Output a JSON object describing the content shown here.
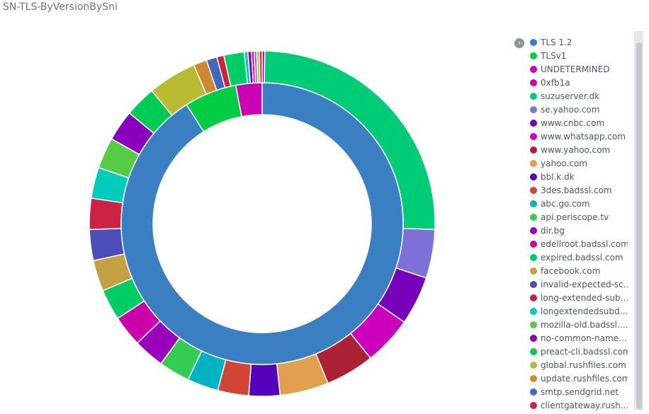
{
  "title": "SN-TLS-ByVersionBySni",
  "legend_toggle_icon": "chevron-right-icon",
  "legend": [
    {
      "label": "TLS 1.2",
      "color": "#3a7fc1"
    },
    {
      "label": "TLSv1",
      "color": "#00cc44"
    },
    {
      "label": "UNDETERMINED",
      "color": "#cc00b3"
    },
    {
      "label": "0xfb1a",
      "color": "#cc00aa"
    },
    {
      "label": "suzuserver.dk",
      "color": "#00cc77"
    },
    {
      "label": "se.yahoo.com",
      "color": "#7c71d8"
    },
    {
      "label": "www.cnbc.com",
      "color": "#7700bb"
    },
    {
      "label": "www.whatsapp.com",
      "color": "#cc00bb"
    },
    {
      "label": "www.yahoo.com",
      "color": "#aa2233"
    },
    {
      "label": "yahoo.com",
      "color": "#e0a050"
    },
    {
      "label": "bbl.k.dk",
      "color": "#5500bb"
    },
    {
      "label": "3des.badssl.com",
      "color": "#d04535"
    },
    {
      "label": "abc.go.com",
      "color": "#00b3c4"
    },
    {
      "label": "api.periscope.tv",
      "color": "#33cc55"
    },
    {
      "label": "dir.bg",
      "color": "#9900bb"
    },
    {
      "label": "edellroot.badssl.com",
      "color": "#cc00aa"
    },
    {
      "label": "expired.badssl.com",
      "color": "#00cc66"
    },
    {
      "label": "facebook.com",
      "color": "#c4a040"
    },
    {
      "label": "invalid-expected-sct....",
      "color": "#4c4cbb"
    },
    {
      "label": "long-extended-subdo...",
      "color": "#cc2244"
    },
    {
      "label": "longextendedsubdo...",
      "color": "#00ccbb"
    },
    {
      "label": "mozilla-old.badssl.com",
      "color": "#55cc44"
    },
    {
      "label": "no-common-name.b...",
      "color": "#8800bb"
    },
    {
      "label": "preact-cli.badssl.com",
      "color": "#00cc55"
    },
    {
      "label": "global.rushfiles.com",
      "color": "#bbbb33"
    },
    {
      "label": "update.rushfiles.com",
      "color": "#cc8833"
    },
    {
      "label": "smtp.sendgrid.net",
      "color": "#4466bb"
    },
    {
      "label": "clientgateway.rushfil...",
      "color": "#cc2244"
    }
  ],
  "chart_data": {
    "type": "pie",
    "title": "SN-TLS-ByVersionBySni",
    "inner": [
      {
        "name": "TLS 1.2",
        "value": 91.0,
        "color": "#3a7fc1"
      },
      {
        "name": "TLSv1",
        "value": 6.0,
        "color": "#00cc44"
      },
      {
        "name": "UNDETERMINED",
        "value": 3.0,
        "color": "#cc00b3"
      }
    ],
    "outer": [
      {
        "name": "0xfb1a",
        "value": 0.3,
        "color": "#cc00aa"
      },
      {
        "name": "suzuserver.dk",
        "value": 30.5,
        "color": "#00cc77"
      },
      {
        "name": "se.yahoo.com",
        "value": 5.5,
        "color": "#7c71d8"
      },
      {
        "name": "www.cnbc.com",
        "value": 5.5,
        "color": "#7700bb"
      },
      {
        "name": "www.whatsapp.com",
        "value": 5.5,
        "color": "#cc00bb"
      },
      {
        "name": "www.yahoo.com",
        "value": 5.5,
        "color": "#aa2233"
      },
      {
        "name": "yahoo.com",
        "value": 5.5,
        "color": "#e0a050"
      },
      {
        "name": "bbl.k.dk",
        "value": 3.5,
        "color": "#5500bb"
      },
      {
        "name": "3des.badssl.com",
        "value": 3.5,
        "color": "#d04535"
      },
      {
        "name": "abc.go.com",
        "value": 3.5,
        "color": "#00b3c4"
      },
      {
        "name": "api.periscope.tv",
        "value": 3.5,
        "color": "#33cc55"
      },
      {
        "name": "dir.bg",
        "value": 3.5,
        "color": "#9900bb"
      },
      {
        "name": "edellroot.badssl.com",
        "value": 3.5,
        "color": "#cc00aa"
      },
      {
        "name": "expired.badssl.com",
        "value": 3.5,
        "color": "#00cc66"
      },
      {
        "name": "facebook.com",
        "value": 3.5,
        "color": "#c4a040"
      },
      {
        "name": "invalid-expected-sct....",
        "value": 3.5,
        "color": "#4c4cbb"
      },
      {
        "name": "long-extended-subdo...",
        "value": 3.5,
        "color": "#cc2244"
      },
      {
        "name": "longextendedsubdo...",
        "value": 3.5,
        "color": "#00ccbb"
      },
      {
        "name": "mozilla-old.badssl.com",
        "value": 3.5,
        "color": "#55cc44"
      },
      {
        "name": "no-common-name.b...",
        "value": 3.5,
        "color": "#8800bb"
      },
      {
        "name": "preact-cli.badssl.com",
        "value": 3.5,
        "color": "#00cc55"
      },
      {
        "name": "global.rushfiles.com",
        "value": 5.5,
        "color": "#bbbb33"
      },
      {
        "name": "update.rushfiles.com",
        "value": 1.5,
        "color": "#cc8833"
      },
      {
        "name": "smtp.sendgrid.net",
        "value": 1.2,
        "color": "#4466bb"
      },
      {
        "name": "clientgateway.rushfil...",
        "value": 0.8,
        "color": "#cc2244"
      },
      {
        "name": "",
        "value": 2.3,
        "color": "#00cc66"
      },
      {
        "name": "",
        "value": 0.4,
        "color": "#00ccbb"
      },
      {
        "name": "",
        "value": 0.4,
        "color": "#7700bb"
      },
      {
        "name": "",
        "value": 0.3,
        "color": "#cc00aa"
      },
      {
        "name": "",
        "value": 0.3,
        "color": "#7c71d8"
      },
      {
        "name": "",
        "value": 0.3,
        "color": "#bbbb33"
      },
      {
        "name": "",
        "value": 0.3,
        "color": "#cc2244"
      }
    ],
    "legend_position": "right"
  }
}
